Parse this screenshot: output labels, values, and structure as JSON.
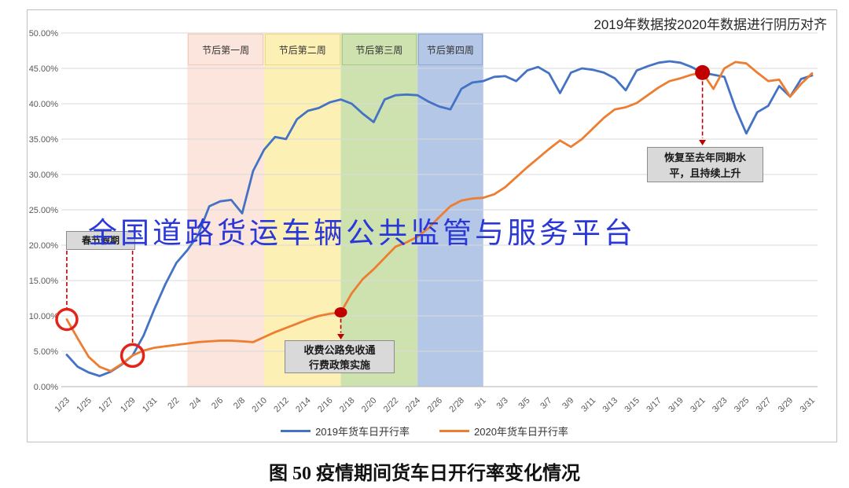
{
  "note_top_right": "2019年数据按2020年数据进行阴历对齐",
  "watermark": "全国道路货运车辆公共监管与服务平台",
  "caption": "图 50 疫情期间货车日开行率变化情况",
  "colors": {
    "grid": "#d9d9d9",
    "axis": "#b3b3b3",
    "tick_text": "#595959",
    "annotation_red": "#c00000",
    "ring_red": "#e3231a",
    "watermark_blue": "#2b38d8"
  },
  "chart_data": {
    "type": "line",
    "x": [
      "1/23",
      "1/24",
      "1/25",
      "1/26",
      "1/27",
      "1/28",
      "1/29",
      "1/30",
      "1/31",
      "2/1",
      "2/2",
      "2/3",
      "2/4",
      "2/5",
      "2/6",
      "2/7",
      "2/8",
      "2/9",
      "2/10",
      "2/11",
      "2/12",
      "2/13",
      "2/14",
      "2/15",
      "2/16",
      "2/17",
      "2/18",
      "2/19",
      "2/20",
      "2/21",
      "2/22",
      "2/23",
      "2/24",
      "2/25",
      "2/26",
      "2/27",
      "2/28",
      "2/29",
      "3/1",
      "3/2",
      "3/3",
      "3/4",
      "3/5",
      "3/6",
      "3/7",
      "3/8",
      "3/9",
      "3/10",
      "3/11",
      "3/12",
      "3/13",
      "3/14",
      "3/15",
      "3/16",
      "3/17",
      "3/18",
      "3/19",
      "3/20",
      "3/21",
      "3/22",
      "3/23",
      "3/24",
      "3/25",
      "3/26",
      "3/27",
      "3/28",
      "3/29",
      "3/30",
      "3/31"
    ],
    "xtick_every": 2,
    "ylim": [
      0,
      50
    ],
    "ytick_step": 5,
    "ytick_labels": [
      "0.00%",
      "5.00%",
      "10.00%",
      "15.00%",
      "20.00%",
      "25.00%",
      "30.00%",
      "35.00%",
      "40.00%",
      "45.00%",
      "50.00%"
    ],
    "grid": "horizontal",
    "legend_position": "bottom",
    "series": [
      {
        "name": "2019年货车日开行率",
        "color": "#4472c4",
        "values": [
          4.5,
          2.8,
          2.0,
          1.5,
          2.1,
          3.1,
          4.4,
          7.2,
          11.0,
          14.5,
          17.5,
          19.3,
          21.5,
          25.5,
          26.2,
          26.4,
          24.5,
          30.5,
          33.5,
          35.3,
          35.0,
          37.8,
          39.0,
          39.4,
          40.2,
          40.6,
          40.0,
          38.6,
          37.4,
          40.6,
          41.2,
          41.3,
          41.2,
          40.3,
          39.6,
          39.2,
          42.1,
          43.0,
          43.2,
          43.8,
          43.9,
          43.2,
          44.7,
          45.2,
          44.3,
          41.5,
          44.4,
          45.0,
          44.8,
          44.4,
          43.6,
          41.9,
          44.7,
          45.3,
          45.8,
          46.0,
          45.8,
          45.2,
          44.4,
          44.1,
          43.8,
          39.4,
          35.8,
          38.8,
          39.7,
          42.5,
          41.0,
          43.5,
          44.0
        ]
      },
      {
        "name": "2020年货车日开行率",
        "color": "#ed7d31",
        "values": [
          9.5,
          6.8,
          4.2,
          2.8,
          2.2,
          3.2,
          4.4,
          5.1,
          5.5,
          5.7,
          5.9,
          6.1,
          6.3,
          6.4,
          6.5,
          6.5,
          6.4,
          6.3,
          7.0,
          7.7,
          8.3,
          8.9,
          9.5,
          10.0,
          10.3,
          10.5,
          13.2,
          15.2,
          16.6,
          18.2,
          19.8,
          20.4,
          21.2,
          22.4,
          24.0,
          25.5,
          26.3,
          26.6,
          26.7,
          27.2,
          28.2,
          29.6,
          31.0,
          32.3,
          33.6,
          34.8,
          33.9,
          35.0,
          36.5,
          38.0,
          39.2,
          39.5,
          40.1,
          41.2,
          42.3,
          43.2,
          43.6,
          44.1,
          44.4,
          42.1,
          45.0,
          45.9,
          45.7,
          44.4,
          43.2,
          43.4,
          41.0,
          42.8,
          44.3
        ]
      }
    ],
    "bands": [
      {
        "label": "节后第一周",
        "from": "2/3",
        "to": "2/10",
        "fill": "#fbe5dc",
        "border": "#f0c9b8"
      },
      {
        "label": "节后第二周",
        "from": "2/10",
        "to": "2/17",
        "fill": "#fdf0b4",
        "border": "#ecda8c"
      },
      {
        "label": "节后第三周",
        "from": "2/17",
        "to": "2/24",
        "fill": "#cde2af",
        "border": "#a7c98b"
      },
      {
        "label": "节后第四周",
        "from": "2/24",
        "to": "3/1",
        "fill": "#b4c7e7",
        "border": "#8ca8d4"
      }
    ],
    "annotations": {
      "spring_festival": {
        "label": "春节假期",
        "points": [
          {
            "x": "1/23",
            "y": 9.5
          },
          {
            "x": "1/29",
            "y": 4.4
          }
        ],
        "ring_radii": [
          13,
          14
        ]
      },
      "toll_free": {
        "line1": "收费公路免收通",
        "line2": "行费政策实施",
        "point": {
          "x": "2/17",
          "y": 10.5
        }
      },
      "recovery": {
        "line1": "恢复至去年同期水",
        "line2": "平，且持续上升",
        "point": {
          "x": "3/21",
          "y": 44.4
        }
      }
    }
  }
}
